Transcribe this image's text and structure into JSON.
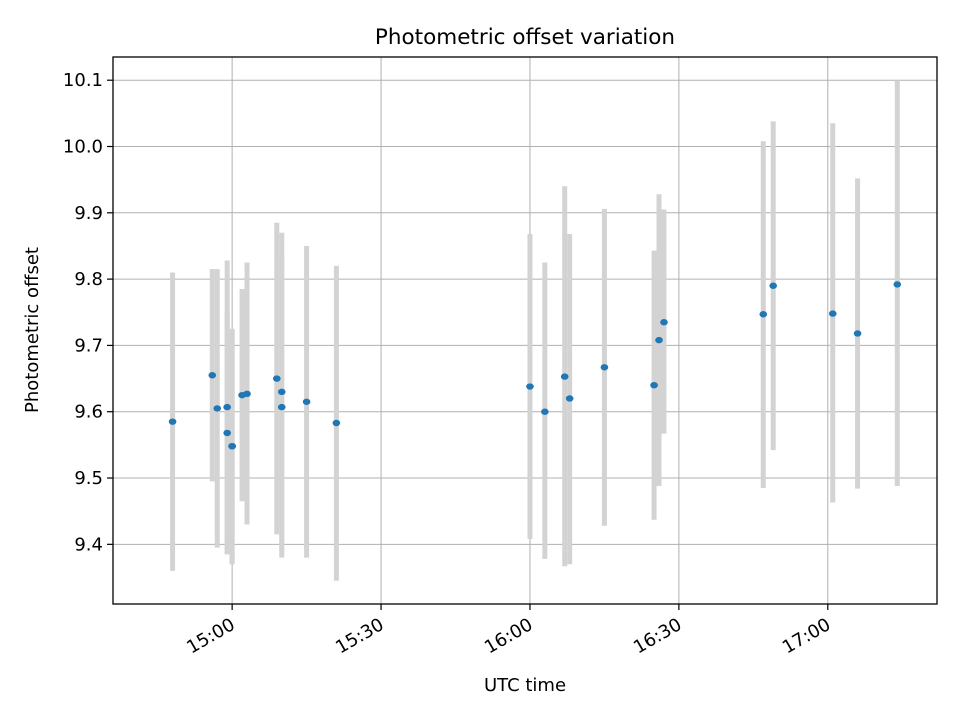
{
  "chart_data": {
    "type": "scatter",
    "title": "Photometric offset variation",
    "xlabel": "UTC time",
    "ylabel": "Photometric offset",
    "x_unit": "UTC time (HH:MM)",
    "xlim": [
      "14:36",
      "17:22"
    ],
    "ylim": [
      9.31,
      10.135
    ],
    "x_ticks": [
      "15:00",
      "15:30",
      "16:00",
      "16:30",
      "17:00"
    ],
    "y_ticks": [
      9.4,
      9.5,
      9.6,
      9.7,
      9.8,
      9.9,
      10.0,
      10.1
    ],
    "grid": true,
    "errorbar_color": "#d3d3d3",
    "point_color": "#1f77b4",
    "series": [
      {
        "points": [
          {
            "x": "14:48",
            "y": 9.585,
            "ylow": 9.36,
            "yhigh": 9.81
          },
          {
            "x": "14:56",
            "y": 9.655,
            "ylow": 9.495,
            "yhigh": 9.815
          },
          {
            "x": "14:57",
            "y": 9.605,
            "ylow": 9.395,
            "yhigh": 9.815
          },
          {
            "x": "14:59",
            "y": 9.568,
            "ylow": 9.385,
            "yhigh": 9.75
          },
          {
            "x": "14:59",
            "y": 9.607,
            "ylow": 9.385,
            "yhigh": 9.828
          },
          {
            "x": "15:00",
            "y": 9.548,
            "ylow": 9.37,
            "yhigh": 9.725
          },
          {
            "x": "15:00",
            "y": 9.548,
            "ylow": 9.37,
            "yhigh": 9.725
          },
          {
            "x": "15:02",
            "y": 9.625,
            "ylow": 9.465,
            "yhigh": 9.785
          },
          {
            "x": "15:03",
            "y": 9.627,
            "ylow": 9.43,
            "yhigh": 9.825
          },
          {
            "x": "15:09",
            "y": 9.65,
            "ylow": 9.415,
            "yhigh": 9.885
          },
          {
            "x": "15:10",
            "y": 9.63,
            "ylow": 9.39,
            "yhigh": 9.87
          },
          {
            "x": "15:10",
            "y": 9.607,
            "ylow": 9.38,
            "yhigh": 9.835
          },
          {
            "x": "15:15",
            "y": 9.615,
            "ylow": 9.38,
            "yhigh": 9.85
          },
          {
            "x": "15:21",
            "y": 9.583,
            "ylow": 9.345,
            "yhigh": 9.82
          },
          {
            "x": "16:00",
            "y": 9.638,
            "ylow": 9.408,
            "yhigh": 9.868
          },
          {
            "x": "16:03",
            "y": 9.6,
            "ylow": 9.378,
            "yhigh": 9.825
          },
          {
            "x": "16:07",
            "y": 9.653,
            "ylow": 9.367,
            "yhigh": 9.94
          },
          {
            "x": "16:08",
            "y": 9.62,
            "ylow": 9.37,
            "yhigh": 9.868
          },
          {
            "x": "16:15",
            "y": 9.667,
            "ylow": 9.428,
            "yhigh": 9.906
          },
          {
            "x": "16:25",
            "y": 9.64,
            "ylow": 9.437,
            "yhigh": 9.843
          },
          {
            "x": "16:26",
            "y": 9.708,
            "ylow": 9.488,
            "yhigh": 9.928
          },
          {
            "x": "16:27",
            "y": 9.735,
            "ylow": 9.567,
            "yhigh": 9.905
          },
          {
            "x": "16:47",
            "y": 9.747,
            "ylow": 9.485,
            "yhigh": 10.008
          },
          {
            "x": "16:49",
            "y": 9.79,
            "ylow": 9.542,
            "yhigh": 10.038
          },
          {
            "x": "17:01",
            "y": 9.748,
            "ylow": 9.463,
            "yhigh": 10.035
          },
          {
            "x": "17:06",
            "y": 9.718,
            "ylow": 9.484,
            "yhigh": 9.952
          },
          {
            "x": "17:14",
            "y": 9.792,
            "ylow": 9.488,
            "yhigh": 10.1
          }
        ]
      }
    ]
  }
}
